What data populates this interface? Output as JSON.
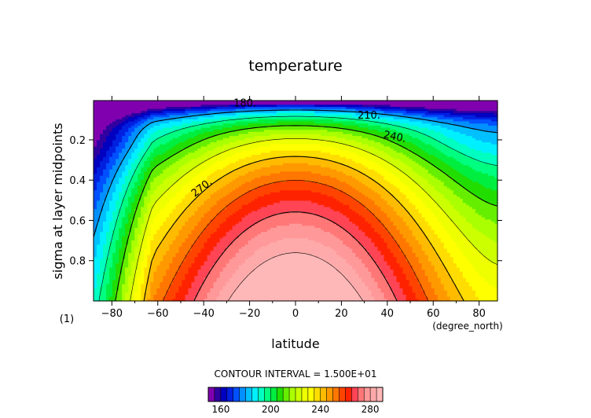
{
  "chart_data": {
    "type": "heatmap",
    "title": "temperature",
    "xlabel": "latitude",
    "ylabel": "sigma at layer midpoints",
    "x_units": "(degree_north)",
    "panel_label": "(1)",
    "xlim": [
      -88,
      88
    ],
    "ylim": [
      0.005,
      1.0
    ],
    "y_inverted": true,
    "x_ticks": [
      -80,
      -60,
      -40,
      -20,
      0,
      20,
      40,
      60,
      80
    ],
    "x_tick_labels": [
      "−80",
      "−60",
      "−40",
      "−20",
      "0",
      "20",
      "40",
      "60",
      "80"
    ],
    "y_ticks": [
      0.2,
      0.4,
      0.6,
      0.8
    ],
    "y_tick_labels": [
      "0.2",
      "0.4",
      "0.6",
      "0.8"
    ],
    "contour_interval_text": "CONTOUR INTERVAL = 1.500E+01",
    "contour_labels": [
      {
        "text": "180.",
        "lat": -22,
        "sigma": 0.035
      },
      {
        "text": "210.",
        "lat": 32,
        "sigma": 0.095
      },
      {
        "text": "240.",
        "lat": 43,
        "sigma": 0.2
      },
      {
        "text": "270.",
        "lat": -40,
        "sigma": 0.45
      }
    ],
    "levels": [
      150,
      155,
      160,
      165,
      170,
      175,
      180,
      185,
      190,
      195,
      200,
      205,
      210,
      215,
      220,
      225,
      230,
      235,
      240,
      245,
      250,
      255,
      260,
      265,
      270,
      275,
      280,
      285,
      290
    ],
    "colors": [
      "#8000b0",
      "#3000a0",
      "#0000c0",
      "#0020e0",
      "#0050ff",
      "#0090ff",
      "#00c0ff",
      "#00f0ff",
      "#00ffc0",
      "#00ff80",
      "#00ee40",
      "#22dd00",
      "#66ee00",
      "#aaff00",
      "#ccff00",
      "#eeff00",
      "#ffff00",
      "#ffdd00",
      "#ffbb00",
      "#ff9900",
      "#ff7700",
      "#ff4400",
      "#ff2200",
      "#ff4455",
      "#ff7777",
      "#ff9999",
      "#ffaaaa",
      "#ffb8b8"
    ],
    "colorbar_tick_values": [
      160,
      200,
      240,
      280
    ],
    "colorbar_tick_labels": [
      "160",
      "200",
      "240",
      "280"
    ],
    "grid": false
  }
}
